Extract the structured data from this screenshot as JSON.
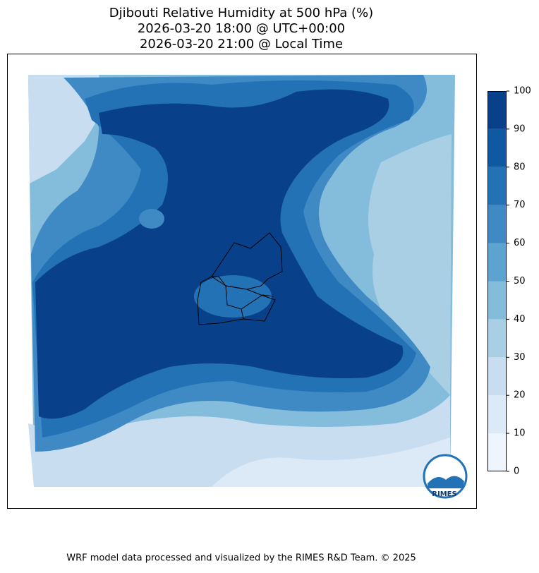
{
  "title": [
    "Djibouti Relative Humidity at 500 hPa (%)",
    "2026-03-20 18:00 @ UTC+00:00",
    "2026-03-20 21:00 @ Local Time"
  ],
  "colorbar": {
    "lim": [
      0,
      100
    ],
    "ticks": [
      0,
      10,
      20,
      30,
      40,
      50,
      60,
      70,
      80,
      90,
      100
    ],
    "colors": [
      "#eef5fc",
      "#dce9f6",
      "#c9ddf0",
      "#a9cfe5",
      "#84bcdb",
      "#5ca3d0",
      "#3f8ac4",
      "#2272b5",
      "#0f58a2",
      "#08418a"
    ]
  },
  "logo": "RIMES",
  "footer": "WRF model data processed and visualized by the RIMES R&D Team. © 2025"
}
